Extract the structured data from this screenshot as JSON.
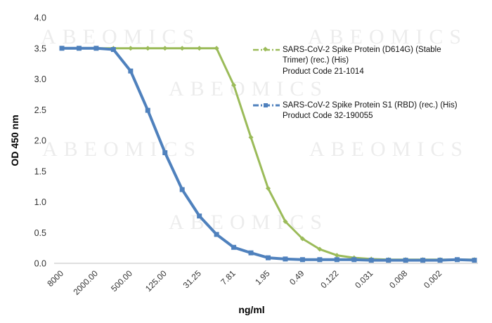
{
  "watermark": "ABEOMICS",
  "chart_data": {
    "type": "line",
    "title": "",
    "xlabel": "ng/ml",
    "ylabel": "OD 450 nm",
    "ylim": [
      0,
      4.0
    ],
    "yticks": [
      "0.0",
      "0.5",
      "1.0",
      "1.5",
      "2.0",
      "2.5",
      "3.0",
      "3.5",
      "4.0"
    ],
    "x_tick_labels": [
      "8000",
      "2000.00",
      "500.00",
      "125.00",
      "31.25",
      "7.81",
      "1.95",
      "0.49",
      "0.122",
      "0.031",
      "0.008",
      "0.002"
    ],
    "grid": false,
    "legend_position": "top-right",
    "series": [
      {
        "name": "SARS-CoV-2 Spike Protein (D614G) (Stable Trimer) (rec.) (His)",
        "name_line1": "SARS-CoV-2 Spike Protein (D614G) (Stable",
        "name_line2": "Trimer) (rec.) (His)",
        "product_code": "Product Code 21-1014",
        "color": "#9bbb59",
        "marker": "diamond",
        "dash": "dash-dot",
        "values": [
          3.5,
          3.5,
          3.5,
          3.5,
          3.5,
          3.5,
          3.5,
          3.5,
          3.5,
          3.5,
          2.9,
          2.05,
          1.22,
          0.68,
          0.4,
          0.23,
          0.13,
          0.09,
          0.07,
          0.06,
          0.06,
          0.06,
          0.06,
          0.06,
          0.06
        ]
      },
      {
        "name": "SARS-CoV-2 Spike Protein S1 (RBD) (rec.) (His)",
        "name_line1": "SARS-CoV-2 Spike Protein S1 (RBD) (rec.) (His)",
        "name_line2": "",
        "product_code": "Product Code 32-190055",
        "color": "#4f81bd",
        "marker": "square",
        "dash": "solid",
        "values": [
          3.5,
          3.5,
          3.5,
          3.48,
          3.13,
          2.49,
          1.8,
          1.2,
          0.77,
          0.47,
          0.26,
          0.17,
          0.09,
          0.07,
          0.06,
          0.06,
          0.06,
          0.06,
          0.05,
          0.05,
          0.05,
          0.05,
          0.05,
          0.06,
          0.05
        ]
      }
    ]
  }
}
